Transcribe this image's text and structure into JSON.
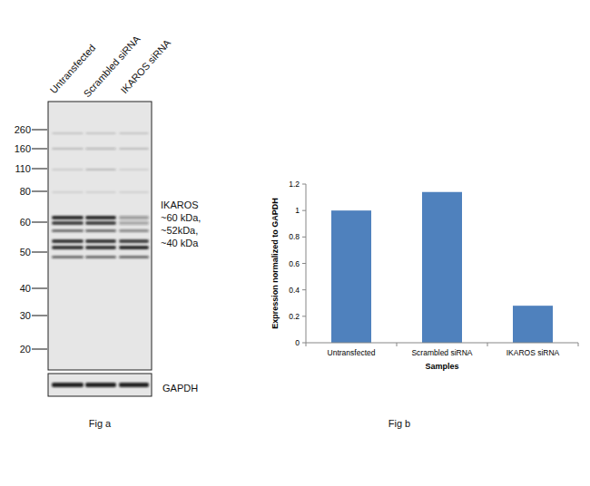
{
  "chart_data": {
    "type": "bar",
    "x_label": "Samples",
    "y_label": "Expression normalized to GAPDH",
    "categories": [
      "Untransfected",
      "Scrambled siRNA",
      "IKAROS siRNA"
    ],
    "values": [
      1.0,
      1.14,
      0.28
    ],
    "color": "#4f81bd",
    "ylim": [
      0,
      1.2
    ],
    "yticks": [
      0,
      0.2,
      0.4,
      0.6,
      0.8,
      1,
      1.2
    ],
    "grid": false,
    "caption": "Fig b"
  },
  "blot": {
    "lanes": [
      "Untransfected",
      "Scrambled siRNA",
      "IKAROS siRNA"
    ],
    "markers": [
      260,
      160,
      110,
      80,
      60,
      50,
      40,
      30,
      20
    ],
    "annotation": [
      "IKAROS",
      "~60 kDa,",
      "~52kDa,",
      "~40 kDa"
    ],
    "loading_control": "GAPDH",
    "caption": "Fig a"
  }
}
